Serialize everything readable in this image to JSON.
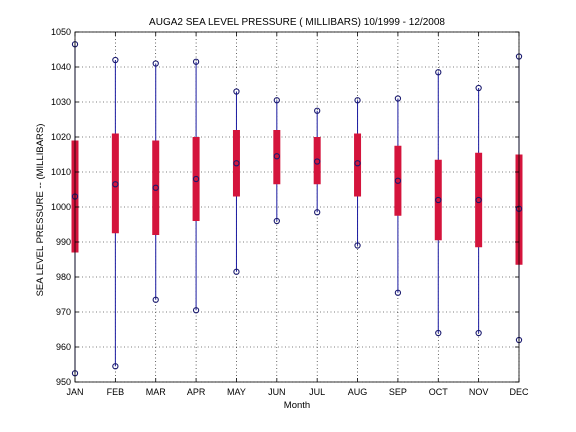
{
  "chart_data": {
    "type": "box",
    "title": "AUGA2  SEA LEVEL PRESSURE ( MILLIBARS) 10/1999 - 12/2008",
    "xlabel": "Month",
    "ylabel": "SEA LEVEL PRESSURE -- (MILLIBARS)",
    "ylim": [
      950,
      1050
    ],
    "yticks": [
      950,
      960,
      970,
      980,
      990,
      1000,
      1010,
      1020,
      1030,
      1040,
      1050
    ],
    "grid": true,
    "categories": [
      "JAN",
      "FEB",
      "MAR",
      "APR",
      "MAY",
      "JUN",
      "JUL",
      "AUG",
      "SEP",
      "OCT",
      "NOV",
      "DEC"
    ],
    "min": [
      952.5,
      954.5,
      973.5,
      970.5,
      981.5,
      996.0,
      998.5,
      989.0,
      975.5,
      964.0,
      964.0,
      962.0
    ],
    "q1": [
      987.0,
      992.5,
      992.0,
      996.0,
      1003.0,
      1006.5,
      1006.5,
      1003.0,
      997.5,
      990.5,
      988.5,
      983.5
    ],
    "median": [
      1003.0,
      1006.5,
      1005.5,
      1008.0,
      1012.5,
      1014.5,
      1013.0,
      1012.5,
      1007.5,
      1002.0,
      1002.0,
      999.5
    ],
    "q3": [
      1019.0,
      1021.0,
      1019.0,
      1020.0,
      1022.0,
      1022.0,
      1020.0,
      1021.0,
      1017.5,
      1013.5,
      1015.5,
      1015.0
    ],
    "max": [
      1046.5,
      1042.0,
      1041.0,
      1041.5,
      1033.0,
      1030.5,
      1027.5,
      1030.5,
      1031.0,
      1038.5,
      1034.0,
      1043.0
    ],
    "colors": {
      "box": "#d4143c",
      "whisker": "#1a1aa0",
      "marker": "#1a1a6e",
      "grid": "#000000",
      "axis": "#000000"
    }
  }
}
